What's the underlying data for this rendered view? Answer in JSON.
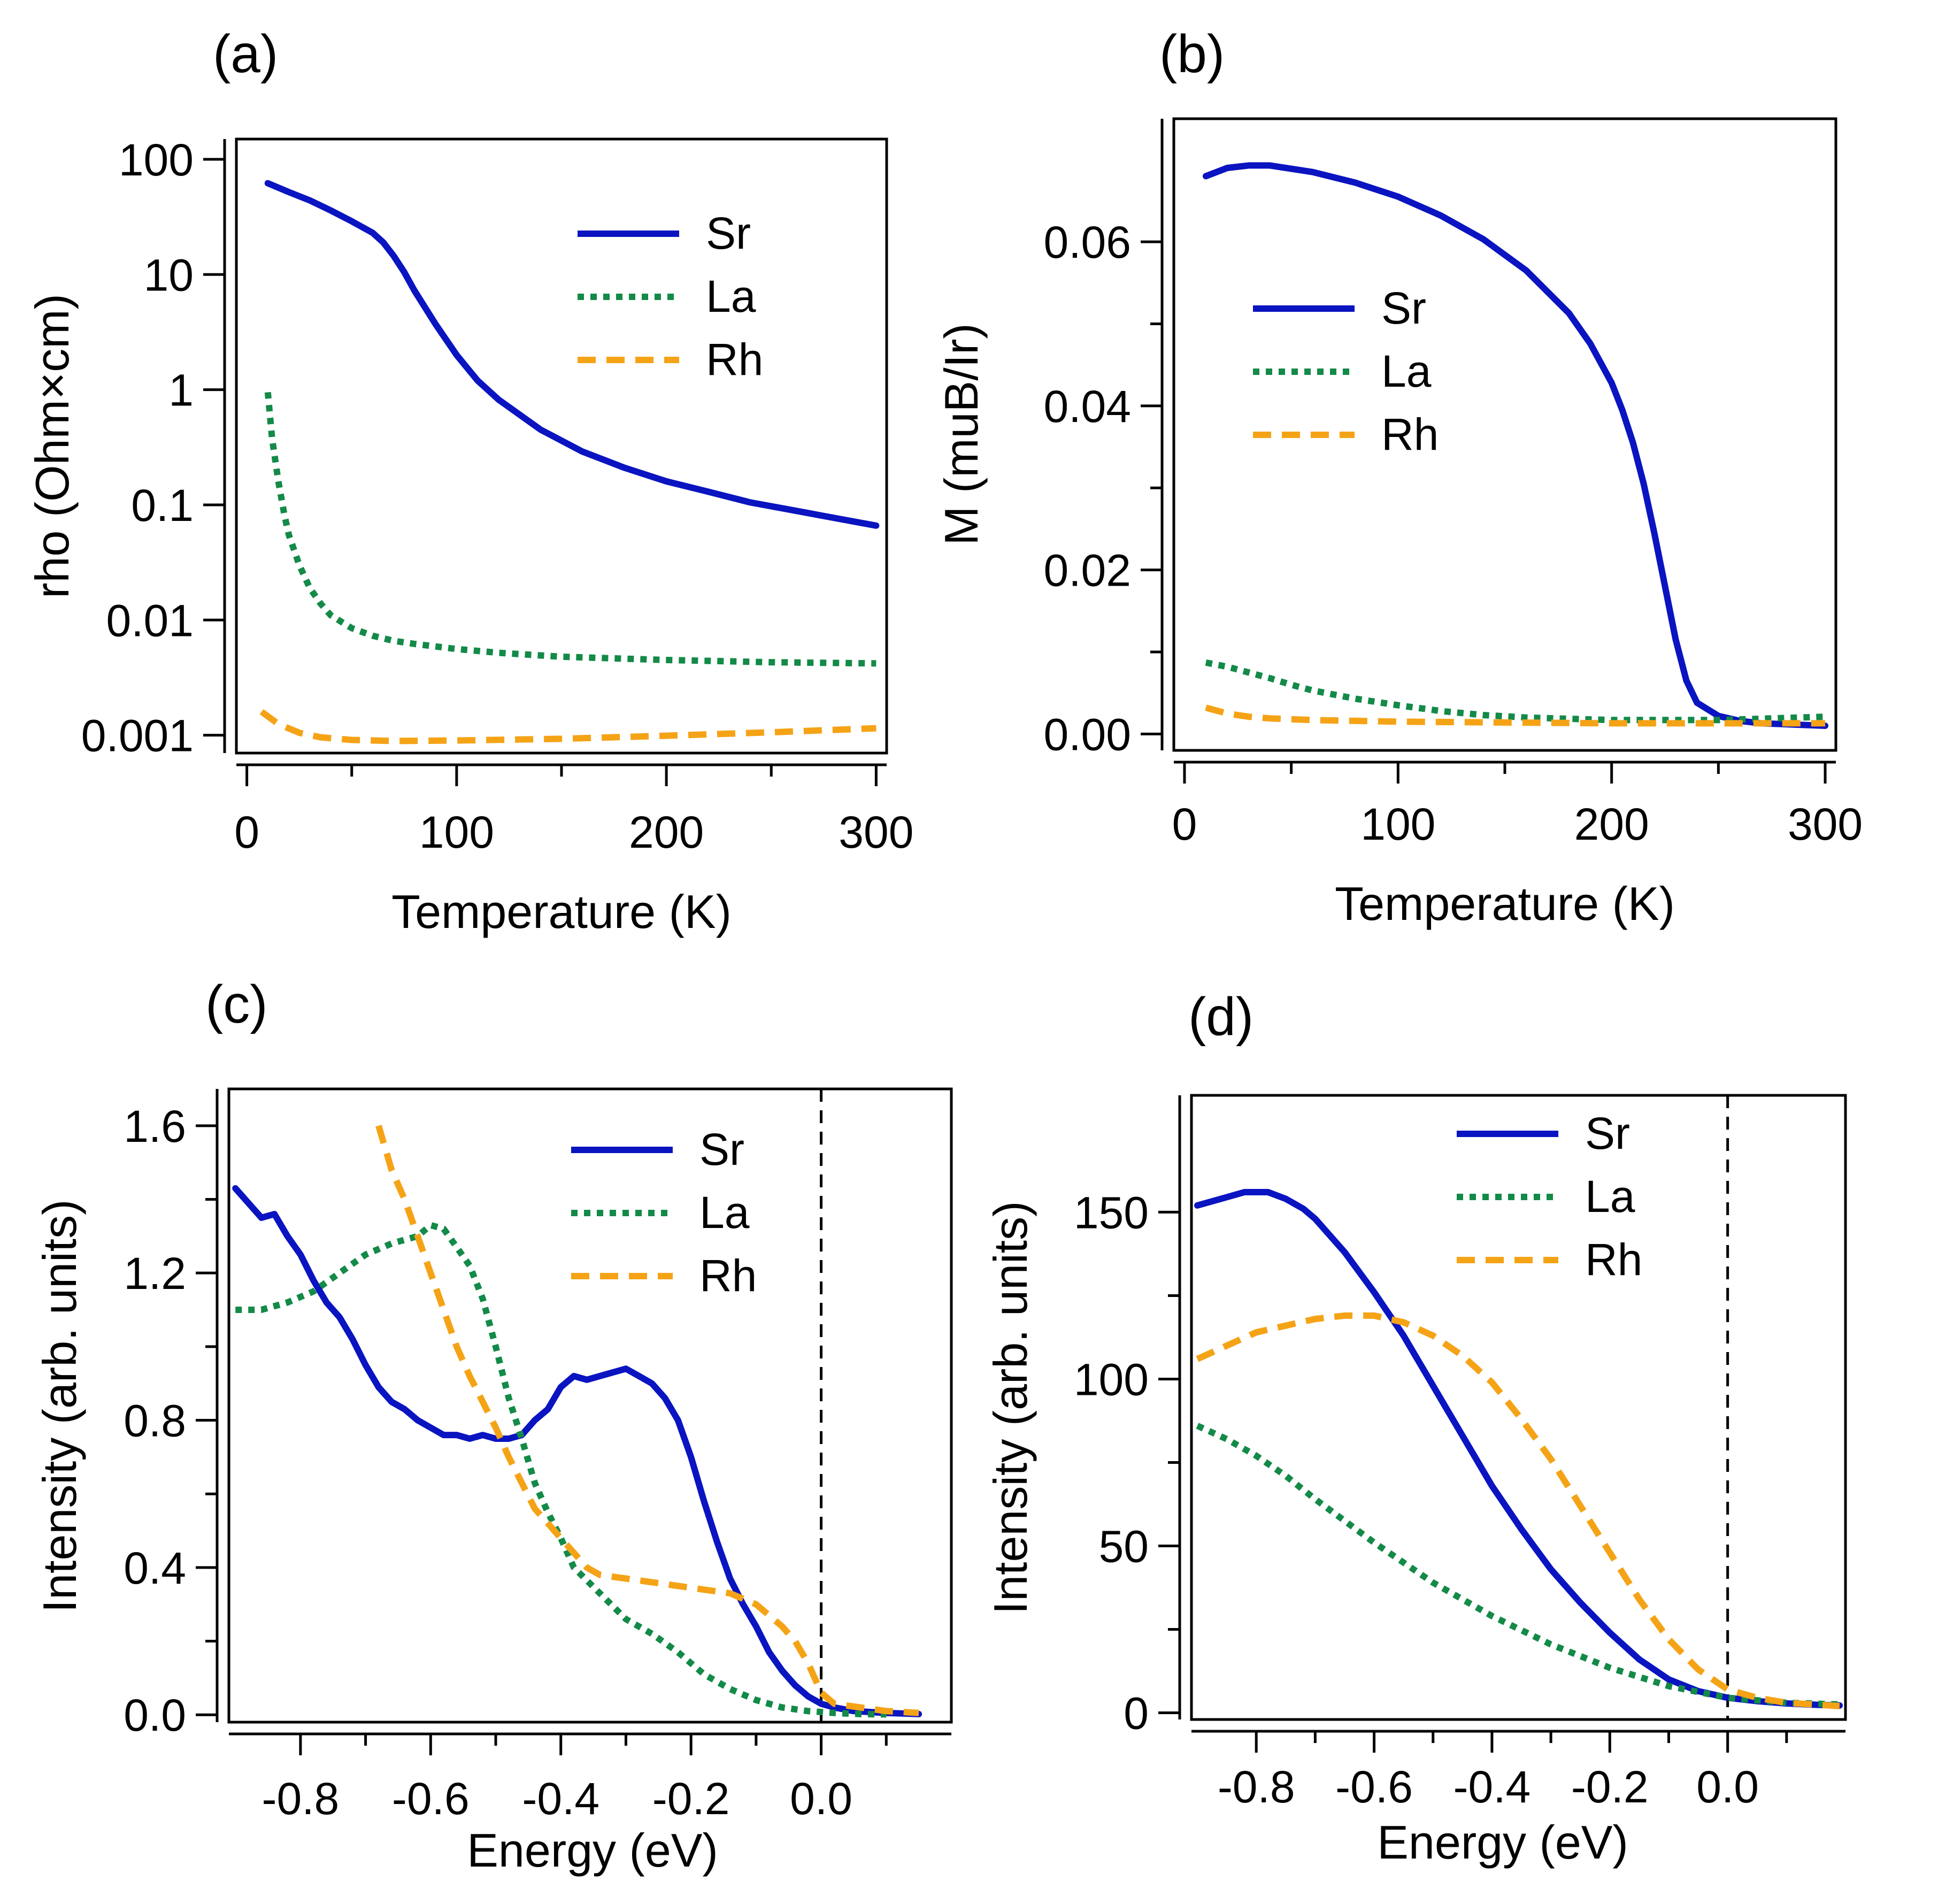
{
  "colors": {
    "Sr": "#0a14c0",
    "La": "#138a48",
    "Rh": "#f5a316",
    "axis": "#000000",
    "dashline": "#000000"
  },
  "chart_data": [
    {
      "panel": "(a)",
      "type": "line",
      "xlabel": "Temperature (K)",
      "ylabel": "rho (Ohm×cm)",
      "yscale": "log",
      "xlim": [
        -5,
        305
      ],
      "ylim": [
        0.0007,
        150
      ],
      "xticks": [
        {
          "v": 0,
          "label": "0"
        },
        {
          "v": 100,
          "label": "100"
        },
        {
          "v": 200,
          "label": "200"
        },
        {
          "v": 300,
          "label": "300"
        }
      ],
      "xminor": [
        50,
        150,
        250
      ],
      "yticks": [
        {
          "v": 100,
          "label": "100"
        },
        {
          "v": 10,
          "label": "10"
        },
        {
          "v": 1,
          "label": "1"
        },
        {
          "v": 0.1,
          "label": "0.1"
        },
        {
          "v": 0.01,
          "label": "0.01"
        },
        {
          "v": 0.001,
          "label": "0.001"
        }
      ],
      "legend": {
        "position": "top-right",
        "entries": [
          "Sr",
          "La",
          "Rh"
        ]
      },
      "series": [
        {
          "name": "Sr",
          "style": "solid",
          "x": [
            10,
            20,
            30,
            40,
            50,
            60,
            65,
            70,
            75,
            80,
            90,
            100,
            110,
            120,
            140,
            160,
            180,
            200,
            220,
            240,
            260,
            280,
            300
          ],
          "y": [
            62,
            52,
            44,
            36,
            29,
            23,
            19,
            14.5,
            10.5,
            7.2,
            3.7,
            2.0,
            1.2,
            0.82,
            0.45,
            0.29,
            0.21,
            0.16,
            0.13,
            0.105,
            0.09,
            0.077,
            0.066
          ]
        },
        {
          "name": "La",
          "style": "dotted",
          "x": [
            10,
            12,
            15,
            18,
            20,
            25,
            30,
            35,
            40,
            50,
            60,
            70,
            80,
            100,
            120,
            150,
            200,
            250,
            300
          ],
          "y": [
            0.95,
            0.38,
            0.16,
            0.08,
            0.055,
            0.03,
            0.019,
            0.014,
            0.011,
            0.0085,
            0.0073,
            0.0066,
            0.0062,
            0.0056,
            0.0052,
            0.0048,
            0.0045,
            0.0043,
            0.0042
          ]
        },
        {
          "name": "Rh",
          "style": "dashed",
          "x": [
            7,
            15,
            25,
            35,
            50,
            70,
            100,
            150,
            200,
            250,
            300
          ],
          "y": [
            0.0016,
            0.00125,
            0.00105,
            0.00096,
            0.00091,
            0.00089,
            0.0009,
            0.00093,
            0.00099,
            0.00106,
            0.00115
          ]
        }
      ]
    },
    {
      "panel": "(b)",
      "type": "line",
      "xlabel": "Temperature (K)",
      "ylabel": "M (muB/Ir)",
      "yscale": "linear",
      "xlim": [
        -5,
        305
      ],
      "ylim": [
        -0.002,
        0.075
      ],
      "xticks": [
        {
          "v": 0,
          "label": "0"
        },
        {
          "v": 100,
          "label": "100"
        },
        {
          "v": 200,
          "label": "200"
        },
        {
          "v": 300,
          "label": "300"
        }
      ],
      "xminor": [
        50,
        150,
        250
      ],
      "yticks": [
        {
          "v": 0.06,
          "label": "0.06"
        },
        {
          "v": 0.04,
          "label": "0.04"
        },
        {
          "v": 0.02,
          "label": "0.02"
        },
        {
          "v": 0.0,
          "label": "0.00"
        }
      ],
      "yminor": [
        0.01,
        0.03,
        0.05
      ],
      "legend": {
        "position": "center-left",
        "entries": [
          "Sr",
          "La",
          "Rh"
        ]
      },
      "series": [
        {
          "name": "Sr",
          "style": "solid",
          "x": [
            10,
            20,
            30,
            40,
            60,
            80,
            100,
            120,
            140,
            160,
            180,
            190,
            200,
            205,
            210,
            215,
            220,
            225,
            230,
            235,
            240,
            250,
            260,
            270,
            280,
            290,
            300
          ],
          "y": [
            0.068,
            0.069,
            0.0693,
            0.0693,
            0.0685,
            0.0672,
            0.0655,
            0.0632,
            0.0603,
            0.0565,
            0.0513,
            0.0476,
            0.0428,
            0.0395,
            0.0355,
            0.0305,
            0.0245,
            0.018,
            0.0115,
            0.0065,
            0.0038,
            0.0022,
            0.0016,
            0.0013,
            0.0012,
            0.0011,
            0.001
          ]
        },
        {
          "name": "La",
          "style": "dotted",
          "x": [
            10,
            20,
            30,
            40,
            50,
            60,
            80,
            100,
            120,
            140,
            160,
            200,
            250,
            300
          ],
          "y": [
            0.0087,
            0.0082,
            0.0075,
            0.0068,
            0.006,
            0.0053,
            0.0043,
            0.0035,
            0.0028,
            0.0023,
            0.002,
            0.0017,
            0.0017,
            0.0021
          ]
        },
        {
          "name": "Rh",
          "style": "dashed",
          "x": [
            10,
            20,
            30,
            40,
            60,
            80,
            100,
            150,
            200,
            250,
            300
          ],
          "y": [
            0.0032,
            0.0025,
            0.0021,
            0.0019,
            0.0017,
            0.0016,
            0.0015,
            0.0014,
            0.0013,
            0.0013,
            0.0013
          ]
        }
      ]
    },
    {
      "panel": "(c)",
      "type": "line",
      "xlabel": "Energy (eV)",
      "ylabel": "Intensity (arb. units)",
      "yscale": "linear",
      "xlim": [
        -0.91,
        0.2
      ],
      "ylim": [
        -0.02,
        1.7
      ],
      "xticks": [
        {
          "v": -0.8,
          "label": "-0.8"
        },
        {
          "v": -0.6,
          "label": "-0.6"
        },
        {
          "v": -0.4,
          "label": "-0.4"
        },
        {
          "v": -0.2,
          "label": "-0.2"
        },
        {
          "v": 0.0,
          "label": "0.0"
        }
      ],
      "xminor": [
        -0.7,
        -0.5,
        -0.3,
        -0.1,
        0.1
      ],
      "yticks": [
        {
          "v": 1.6,
          "label": "1.6"
        },
        {
          "v": 1.2,
          "label": "1.2"
        },
        {
          "v": 0.8,
          "label": "0.8"
        },
        {
          "v": 0.4,
          "label": "0.4"
        },
        {
          "v": 0.0,
          "label": "0.0"
        }
      ],
      "yminor": [
        0.2,
        0.6,
        1.0,
        1.4
      ],
      "vline": 0.0,
      "legend": {
        "position": "top-right",
        "entries": [
          "Sr",
          "La",
          "Rh"
        ]
      },
      "series": [
        {
          "name": "Sr",
          "style": "solid",
          "x": [
            -0.9,
            -0.88,
            -0.86,
            -0.84,
            -0.82,
            -0.8,
            -0.78,
            -0.76,
            -0.74,
            -0.72,
            -0.7,
            -0.68,
            -0.66,
            -0.64,
            -0.62,
            -0.6,
            -0.58,
            -0.56,
            -0.54,
            -0.52,
            -0.5,
            -0.48,
            -0.46,
            -0.44,
            -0.42,
            -0.4,
            -0.38,
            -0.36,
            -0.34,
            -0.32,
            -0.3,
            -0.28,
            -0.26,
            -0.24,
            -0.22,
            -0.2,
            -0.18,
            -0.16,
            -0.14,
            -0.12,
            -0.1,
            -0.08,
            -0.06,
            -0.04,
            -0.02,
            0.0,
            0.02,
            0.05,
            0.1,
            0.15
          ],
          "y": [
            1.43,
            1.39,
            1.35,
            1.36,
            1.3,
            1.25,
            1.18,
            1.12,
            1.08,
            1.02,
            0.95,
            0.89,
            0.85,
            0.83,
            0.8,
            0.78,
            0.76,
            0.76,
            0.75,
            0.76,
            0.75,
            0.75,
            0.76,
            0.8,
            0.83,
            0.89,
            0.92,
            0.91,
            0.92,
            0.93,
            0.94,
            0.92,
            0.9,
            0.86,
            0.8,
            0.7,
            0.58,
            0.47,
            0.37,
            0.3,
            0.24,
            0.17,
            0.12,
            0.08,
            0.05,
            0.03,
            0.02,
            0.01,
            0.005,
            0.002
          ]
        },
        {
          "name": "La",
          "style": "dotted",
          "x": [
            -0.9,
            -0.86,
            -0.82,
            -0.78,
            -0.74,
            -0.7,
            -0.66,
            -0.62,
            -0.6,
            -0.58,
            -0.56,
            -0.54,
            -0.52,
            -0.5,
            -0.48,
            -0.46,
            -0.44,
            -0.42,
            -0.4,
            -0.38,
            -0.34,
            -0.3,
            -0.26,
            -0.22,
            -0.18,
            -0.14,
            -0.1,
            -0.06,
            -0.02,
            0.02,
            0.06,
            0.1
          ],
          "y": [
            1.1,
            1.1,
            1.12,
            1.15,
            1.2,
            1.25,
            1.28,
            1.3,
            1.33,
            1.32,
            1.27,
            1.22,
            1.13,
            1.0,
            0.86,
            0.75,
            0.63,
            0.55,
            0.48,
            0.4,
            0.33,
            0.26,
            0.22,
            0.17,
            0.11,
            0.07,
            0.04,
            0.02,
            0.01,
            0.005,
            0.002,
            0.001
          ]
        },
        {
          "name": "Rh",
          "style": "dashed",
          "x": [
            -0.68,
            -0.66,
            -0.64,
            -0.62,
            -0.6,
            -0.58,
            -0.56,
            -0.54,
            -0.52,
            -0.5,
            -0.48,
            -0.46,
            -0.44,
            -0.42,
            -0.4,
            -0.38,
            -0.36,
            -0.34,
            -0.3,
            -0.26,
            -0.22,
            -0.18,
            -0.14,
            -0.1,
            -0.06,
            -0.04,
            -0.02,
            0.0,
            0.02,
            0.06,
            0.1,
            0.15
          ],
          "y": [
            1.6,
            1.48,
            1.4,
            1.3,
            1.2,
            1.1,
            1.0,
            0.92,
            0.85,
            0.78,
            0.7,
            0.63,
            0.56,
            0.52,
            0.48,
            0.44,
            0.4,
            0.38,
            0.37,
            0.36,
            0.35,
            0.34,
            0.33,
            0.3,
            0.24,
            0.2,
            0.14,
            0.06,
            0.03,
            0.02,
            0.01,
            0.005
          ]
        }
      ]
    },
    {
      "panel": "(d)",
      "type": "line",
      "xlabel": "Energy (eV)",
      "ylabel": "Intensity (arb. units)",
      "yscale": "linear",
      "xlim": [
        -0.91,
        0.2
      ],
      "ylim": [
        -2,
        185
      ],
      "xticks": [
        {
          "v": -0.8,
          "label": "-0.8"
        },
        {
          "v": -0.6,
          "label": "-0.6"
        },
        {
          "v": -0.4,
          "label": "-0.4"
        },
        {
          "v": -0.2,
          "label": "-0.2"
        },
        {
          "v": 0.0,
          "label": "0.0"
        }
      ],
      "xminor": [
        -0.7,
        -0.5,
        -0.3,
        -0.1,
        0.1
      ],
      "yticks": [
        {
          "v": 150,
          "label": "150"
        },
        {
          "v": 100,
          "label": "100"
        },
        {
          "v": 50,
          "label": "50"
        },
        {
          "v": 0,
          "label": "0"
        }
      ],
      "yminor": [
        25,
        75,
        125
      ],
      "vline": 0.0,
      "legend": {
        "position": "top-right",
        "entries": [
          "Sr",
          "La",
          "Rh"
        ]
      },
      "series": [
        {
          "name": "Sr",
          "style": "solid",
          "x": [
            -0.9,
            -0.86,
            -0.82,
            -0.8,
            -0.78,
            -0.75,
            -0.72,
            -0.7,
            -0.65,
            -0.6,
            -0.55,
            -0.5,
            -0.45,
            -0.4,
            -0.35,
            -0.3,
            -0.25,
            -0.2,
            -0.15,
            -0.1,
            -0.05,
            0.0,
            0.05,
            0.1,
            0.15,
            0.19
          ],
          "y": [
            152,
            154,
            156,
            156,
            156,
            154,
            151,
            148,
            138,
            126,
            113,
            98,
            83,
            68,
            55,
            43,
            33,
            24,
            16,
            10,
            6.5,
            4.5,
            3.5,
            2.8,
            2.4,
            2.2
          ]
        },
        {
          "name": "La",
          "style": "dotted",
          "x": [
            -0.9,
            -0.85,
            -0.8,
            -0.75,
            -0.7,
            -0.6,
            -0.5,
            -0.4,
            -0.3,
            -0.2,
            -0.1,
            0.0,
            0.1,
            0.19
          ],
          "y": [
            86,
            82,
            77,
            71,
            64,
            51,
            39,
            29,
            20.5,
            13.5,
            8,
            4.5,
            3,
            2.5
          ]
        },
        {
          "name": "Rh",
          "style": "dashed",
          "x": [
            -0.9,
            -0.85,
            -0.8,
            -0.75,
            -0.7,
            -0.65,
            -0.6,
            -0.55,
            -0.5,
            -0.45,
            -0.4,
            -0.35,
            -0.3,
            -0.25,
            -0.2,
            -0.15,
            -0.1,
            -0.05,
            0.0,
            0.05,
            0.1,
            0.19
          ],
          "y": [
            106,
            110,
            114,
            116,
            118,
            119,
            119,
            117,
            113,
            107,
            99,
            88,
            76,
            62,
            48,
            34,
            22,
            13,
            7,
            4.5,
            3,
            2
          ]
        }
      ]
    }
  ]
}
